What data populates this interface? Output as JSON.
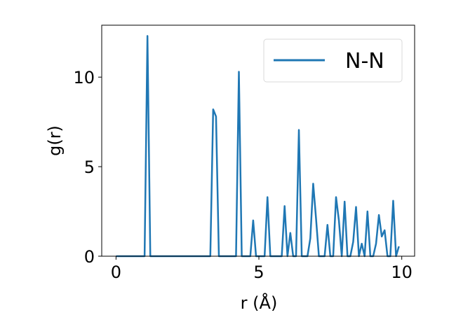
{
  "chart_data": {
    "type": "line",
    "title": "",
    "xlabel": "r (Å)",
    "ylabel": "g(r)",
    "xlim": [
      -0.5,
      10.45
    ],
    "ylim": [
      0,
      12.9
    ],
    "xticks": [
      0,
      5,
      10
    ],
    "xtick_labels": [
      "0",
      "5",
      "10"
    ],
    "yticks": [
      0,
      5,
      10
    ],
    "ytick_labels": [
      "0",
      "5",
      "10"
    ],
    "grid": false,
    "legend_position": "top-right",
    "line_color": "#1f77b4",
    "series": [
      {
        "name": "N-N",
        "x": [
          0.0,
          1.0,
          1.1,
          1.2,
          3.3,
          3.4,
          3.5,
          3.6,
          4.2,
          4.3,
          4.4,
          4.7,
          4.8,
          4.9,
          5.2,
          5.3,
          5.4,
          5.5,
          5.8,
          5.9,
          6.0,
          6.1,
          6.2,
          6.3,
          6.4,
          6.5,
          6.7,
          6.8,
          6.9,
          7.0,
          7.1,
          7.3,
          7.4,
          7.5,
          7.6,
          7.7,
          7.8,
          7.9,
          8.0,
          8.1,
          8.2,
          8.3,
          8.4,
          8.5,
          8.6,
          8.7,
          8.8,
          8.9,
          9.0,
          9.1,
          9.2,
          9.3,
          9.4,
          9.5,
          9.6,
          9.7,
          9.8,
          9.9
        ],
        "y": [
          0,
          0,
          12.3,
          0,
          0,
          8.2,
          7.8,
          0,
          0,
          10.3,
          0,
          0,
          2.0,
          0,
          0,
          3.3,
          0,
          0,
          0,
          2.8,
          0,
          1.3,
          0,
          0,
          7.05,
          0,
          0,
          1.0,
          4.05,
          2.1,
          0,
          0,
          1.75,
          0,
          0,
          3.3,
          2.0,
          0,
          3.05,
          0,
          0,
          0.8,
          2.75,
          0,
          0.7,
          0,
          2.5,
          0,
          0,
          0.7,
          2.3,
          1.1,
          1.45,
          0,
          0,
          3.1,
          0,
          0.55
        ]
      }
    ]
  }
}
